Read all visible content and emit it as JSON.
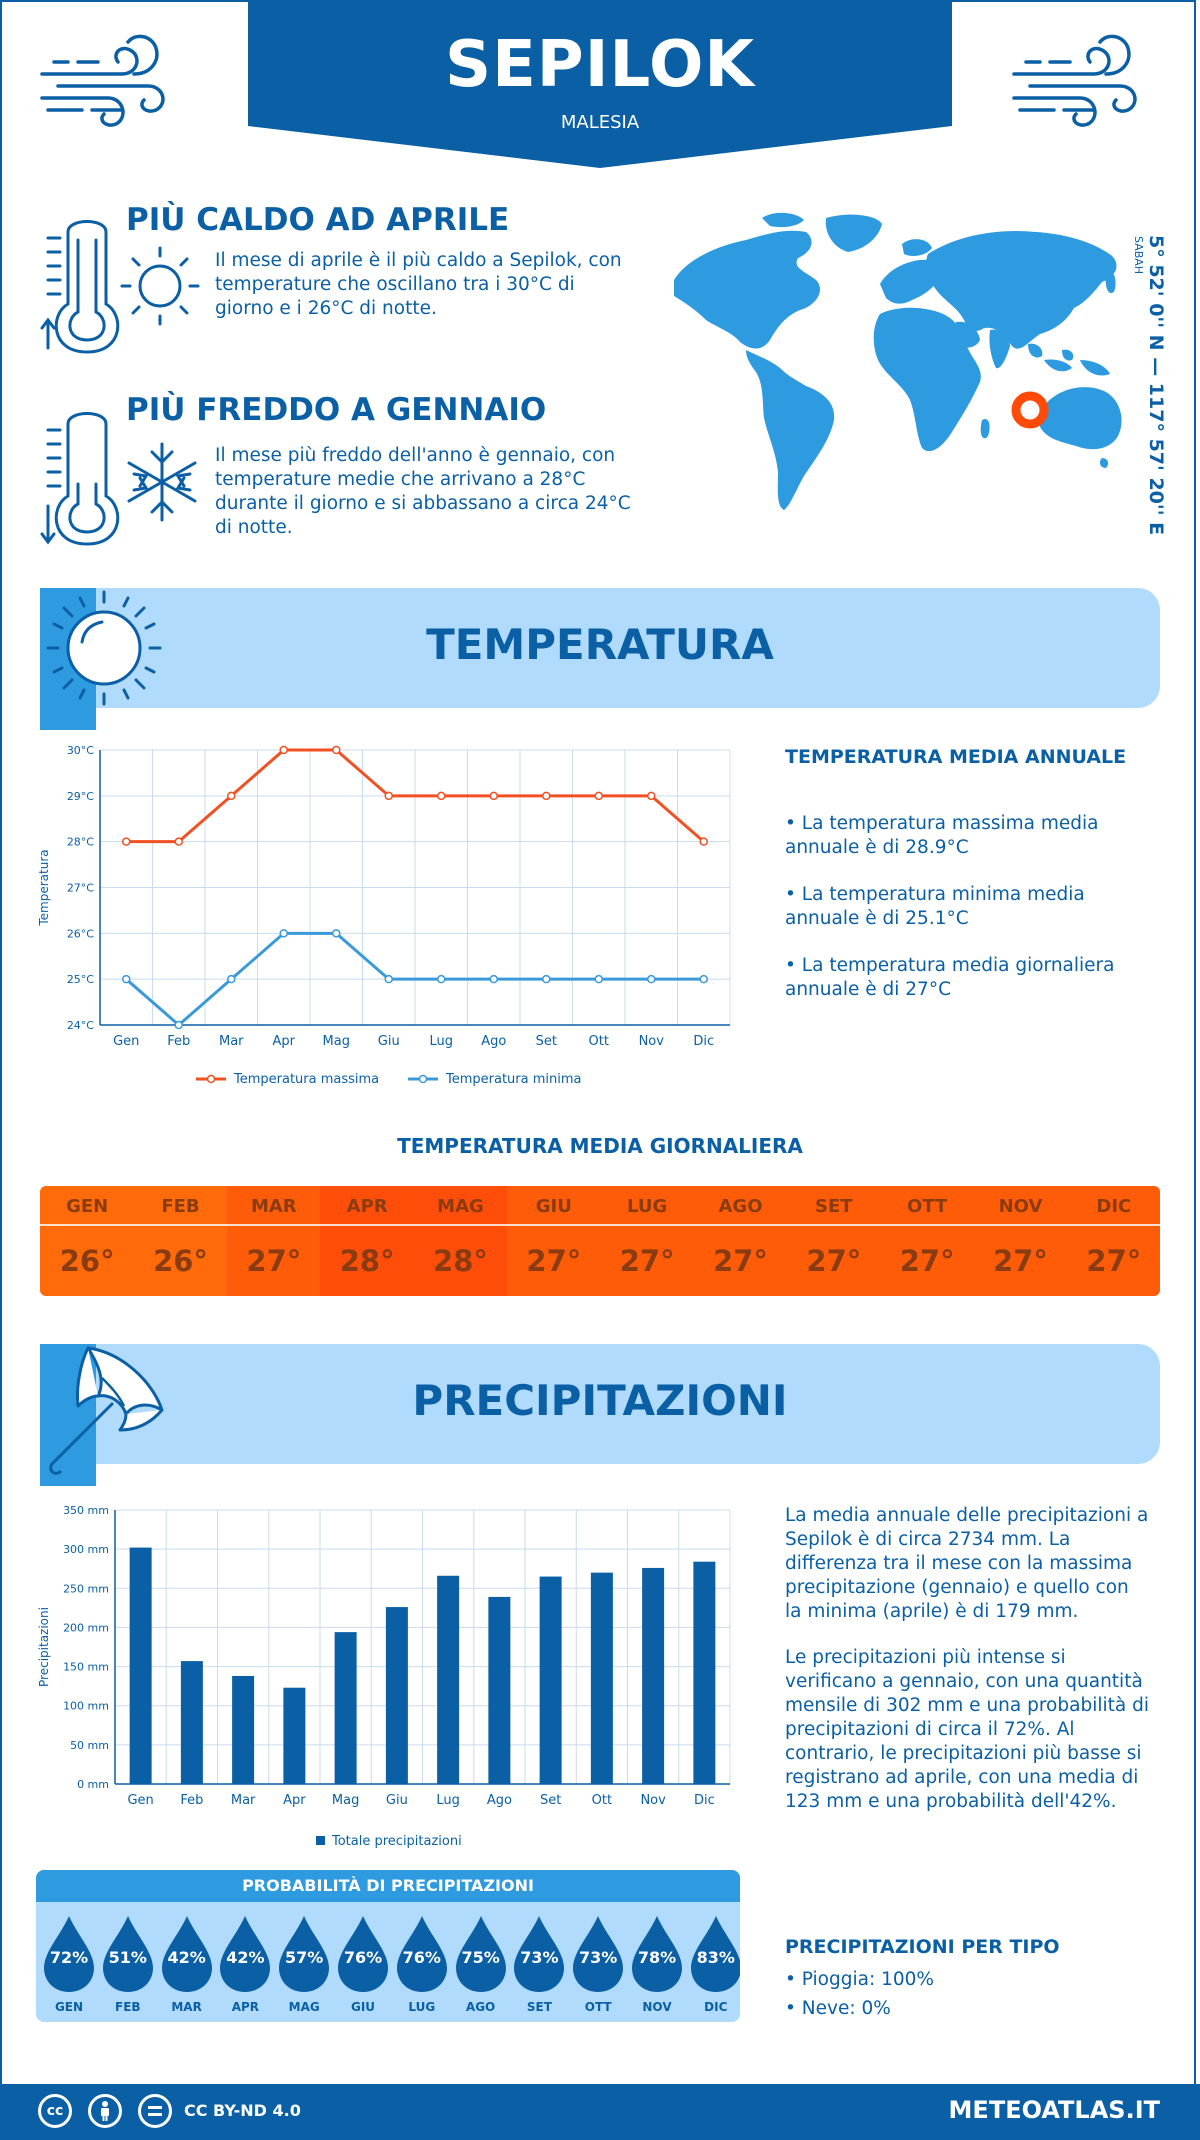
{
  "header": {
    "title": "SEPILOK",
    "subtitle": "MALESIA"
  },
  "coords": {
    "text": "5° 52' 0'' N — 117° 57' 20'' E",
    "region": "SABAH"
  },
  "facts": {
    "hottest": {
      "title": "PIÙ CALDO AD APRILE",
      "text": "Il mese di aprile è il più caldo a Sepilok, con temperature che oscillano tra i 30°C di giorno e i 26°C di notte."
    },
    "coldest": {
      "title": "PIÙ FREDDO A GENNAIO",
      "text": "Il mese più freddo dell'anno è gennaio, con temperature medie che arrivano a 28°C durante il giorno e si abbassano a circa 24°C di notte."
    }
  },
  "temperature_section": {
    "title": "TEMPERATURA",
    "side_title": "TEMPERATURA MEDIA ANNUALE",
    "bullets": [
      "• La temperatura massima media annuale è di 28.9°C",
      "• La temperatura minima media annuale è di 25.1°C",
      "• La temperatura media giornaliera annuale è di 27°C"
    ],
    "daily_title": "TEMPERATURA MEDIA GIORNALIERA",
    "daily": [
      {
        "month": "GEN",
        "value": "26°",
        "color": "#ff6a0a"
      },
      {
        "month": "FEB",
        "value": "26°",
        "color": "#ff6a0a"
      },
      {
        "month": "MAR",
        "value": "27°",
        "color": "#ff5c0a"
      },
      {
        "month": "APR",
        "value": "28°",
        "color": "#ff4d0a"
      },
      {
        "month": "MAG",
        "value": "28°",
        "color": "#ff4d0a"
      },
      {
        "month": "GIU",
        "value": "27°",
        "color": "#ff5c0a"
      },
      {
        "month": "LUG",
        "value": "27°",
        "color": "#ff5c0a"
      },
      {
        "month": "AGO",
        "value": "27°",
        "color": "#ff5c0a"
      },
      {
        "month": "SET",
        "value": "27°",
        "color": "#ff5c0a"
      },
      {
        "month": "OTT",
        "value": "27°",
        "color": "#ff5c0a"
      },
      {
        "month": "NOV",
        "value": "27°",
        "color": "#ff5c0a"
      },
      {
        "month": "DIC",
        "value": "27°",
        "color": "#ff5c0a"
      }
    ]
  },
  "precip_section": {
    "title": "PRECIPITAZIONI",
    "paragraph1": "La media annuale delle precipitazioni a Sepilok è di circa 2734 mm. La differenza tra il mese con la massima precipitazione (gennaio) e quello con la minima (aprile) è di 179 mm.",
    "paragraph2": "Le precipitazioni più intense si verificano a gennaio, con una quantità mensile di 302 mm e una probabilità di precipitazioni di circa il 72%. Al contrario, le precipitazioni più basse si registrano ad aprile, con una media di 123 mm e una probabilità dell'42%.",
    "prob_title": "PROBABILITÀ DI PRECIPITAZIONI",
    "probabilities": [
      {
        "month": "GEN",
        "value": "72%"
      },
      {
        "month": "FEB",
        "value": "51%"
      },
      {
        "month": "MAR",
        "value": "42%"
      },
      {
        "month": "APR",
        "value": "42%"
      },
      {
        "month": "MAG",
        "value": "57%"
      },
      {
        "month": "GIU",
        "value": "76%"
      },
      {
        "month": "LUG",
        "value": "76%"
      },
      {
        "month": "AGO",
        "value": "75%"
      },
      {
        "month": "SET",
        "value": "73%"
      },
      {
        "month": "OTT",
        "value": "73%"
      },
      {
        "month": "NOV",
        "value": "78%"
      },
      {
        "month": "DIC",
        "value": "83%"
      }
    ],
    "type_title": "PRECIPITAZIONI PER TIPO",
    "types": [
      "• Pioggia: 100%",
      "• Neve: 0%"
    ]
  },
  "footer": {
    "license": "CC BY-ND 4.0",
    "site": "METEOATLAS.IT",
    "icons": [
      "cc-icon",
      "person-icon",
      "equal-icon"
    ]
  },
  "colors": {
    "primary": "#0b5fa5",
    "light": "#b0dbfc",
    "accent": "#2e9ae0",
    "max": "#f25022",
    "min": "#3a9ad9"
  },
  "chart_data": [
    {
      "type": "line",
      "categories": [
        "Gen",
        "Feb",
        "Mar",
        "Apr",
        "Mag",
        "Giu",
        "Lug",
        "Ago",
        "Set",
        "Ott",
        "Nov",
        "Dic"
      ],
      "series": [
        {
          "name": "Temperatura massima",
          "values": [
            28,
            28,
            29,
            30,
            30,
            29,
            29,
            29,
            29,
            29,
            29,
            28
          ]
        },
        {
          "name": "Temperatura minima",
          "values": [
            25,
            24,
            25,
            26,
            26,
            25,
            25,
            25,
            25,
            25,
            25,
            25
          ]
        }
      ],
      "ylabel": "Temperatura",
      "ylim": [
        24,
        30
      ],
      "yticks": [
        "24°C",
        "25°C",
        "26°C",
        "27°C",
        "28°C",
        "29°C",
        "30°C"
      ],
      "legend": "bottom",
      "grid": true
    },
    {
      "type": "bar",
      "categories": [
        "Gen",
        "Feb",
        "Mar",
        "Apr",
        "Mag",
        "Giu",
        "Lug",
        "Ago",
        "Set",
        "Ott",
        "Nov",
        "Dic"
      ],
      "series": [
        {
          "name": "Totale precipitazioni",
          "values": [
            302,
            157,
            138,
            123,
            194,
            226,
            266,
            239,
            265,
            270,
            276,
            284
          ]
        }
      ],
      "ylabel": "Precipitazioni",
      "ylim": [
        0,
        350
      ],
      "yticks": [
        "0 mm",
        "50 mm",
        "100 mm",
        "150 mm",
        "200 mm",
        "250 mm",
        "300 mm",
        "350 mm"
      ],
      "legend": "bottom",
      "grid": true
    }
  ]
}
